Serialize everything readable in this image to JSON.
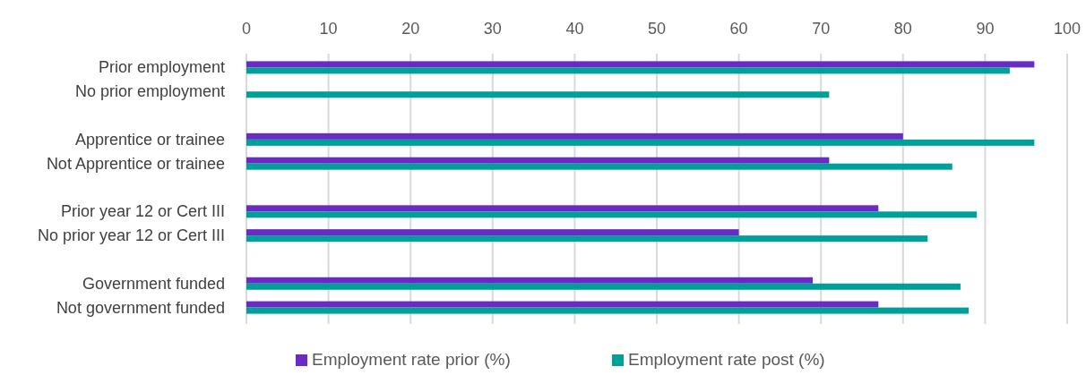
{
  "chart_data": {
    "type": "bar",
    "orientation": "horizontal",
    "categories": [
      "Prior employment",
      "No  prior employment",
      null,
      "Apprentice or trainee",
      "Not Apprentice or trainee",
      null,
      "Prior year 12 or Cert III",
      "No prior year 12 or Cert III",
      null,
      "Government funded",
      "Not government funded"
    ],
    "series": [
      {
        "name": "Employment rate prior  (%)",
        "color": "#6a2bc4",
        "values": [
          96,
          null,
          null,
          80,
          71,
          null,
          77,
          60,
          null,
          69,
          77
        ]
      },
      {
        "name": "Employment rate post (%)",
        "color": "#00a09a",
        "values": [
          93,
          71,
          null,
          96,
          86,
          null,
          89,
          83,
          null,
          87,
          88
        ]
      }
    ],
    "xlim": [
      0,
      100
    ],
    "xticks": [
      0,
      10,
      20,
      30,
      40,
      50,
      60,
      70,
      80,
      90,
      100
    ],
    "grid": "x",
    "legend": "bottom"
  }
}
